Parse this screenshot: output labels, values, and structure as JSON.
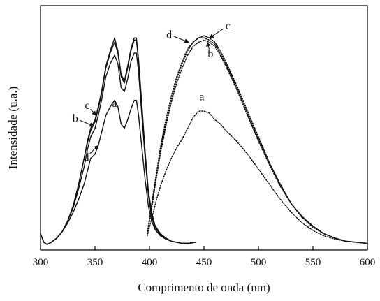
{
  "chart_data": {
    "type": "line",
    "xlabel": "Comprimento de onda (nm)",
    "ylabel": "Intensidade (u.a.)",
    "xlim": [
      300,
      600
    ],
    "ylim": [
      0,
      1.0
    ],
    "xticks": [
      300,
      350,
      400,
      450,
      500,
      550,
      600
    ],
    "yticks_shown": false,
    "grid": false,
    "legend": "none",
    "curve_labels": [
      "a",
      "b",
      "c",
      "d"
    ],
    "series": [
      {
        "style": "solid",
        "x": [
          300,
          303,
          306,
          310,
          315,
          320,
          325,
          330,
          335,
          340,
          343,
          346,
          350,
          353,
          356,
          360,
          364,
          368,
          371,
          374,
          377,
          380,
          383,
          386,
          388,
          390,
          393,
          396,
          399,
          402,
          405,
          410,
          415,
          420,
          425,
          430,
          436,
          442
        ],
        "y": [
          0.05,
          0.01,
          0.0,
          0.01,
          0.03,
          0.06,
          0.1,
          0.15,
          0.21,
          0.28,
          0.34,
          0.4,
          0.42,
          0.46,
          0.52,
          0.6,
          0.64,
          0.67,
          0.64,
          0.56,
          0.54,
          0.58,
          0.63,
          0.67,
          0.67,
          0.6,
          0.45,
          0.3,
          0.18,
          0.11,
          0.07,
          0.04,
          0.025,
          0.015,
          0.01,
          0.005,
          0.005,
          0.01
        ]
      },
      {
        "style": "solid",
        "x": [
          300,
          303,
          306,
          310,
          315,
          320,
          325,
          330,
          335,
          340,
          343,
          346,
          350,
          353,
          356,
          360,
          364,
          368,
          371,
          374,
          377,
          380,
          383,
          386,
          388,
          390,
          393,
          396,
          399,
          402,
          405,
          410,
          415,
          420,
          425,
          430,
          436,
          442
        ],
        "y": [
          0.05,
          0.01,
          0.0,
          0.01,
          0.03,
          0.06,
          0.11,
          0.17,
          0.26,
          0.36,
          0.44,
          0.5,
          0.54,
          0.6,
          0.67,
          0.78,
          0.84,
          0.88,
          0.84,
          0.73,
          0.71,
          0.77,
          0.85,
          0.89,
          0.89,
          0.8,
          0.6,
          0.4,
          0.23,
          0.13,
          0.08,
          0.045,
          0.025,
          0.015,
          0.01,
          0.005,
          0.005,
          0.01
        ]
      },
      {
        "style": "solid",
        "x": [
          300,
          303,
          306,
          310,
          315,
          320,
          325,
          330,
          335,
          340,
          343,
          346,
          350,
          353,
          356,
          360,
          364,
          368,
          371,
          374,
          377,
          380,
          383,
          386,
          388,
          390,
          393,
          396,
          399,
          402,
          405,
          410,
          415,
          420,
          425,
          430,
          436,
          442
        ],
        "y": [
          0.05,
          0.01,
          0.0,
          0.01,
          0.03,
          0.06,
          0.11,
          0.18,
          0.28,
          0.4,
          0.47,
          0.53,
          0.57,
          0.63,
          0.7,
          0.82,
          0.89,
          0.94,
          0.89,
          0.78,
          0.75,
          0.82,
          0.9,
          0.95,
          0.95,
          0.85,
          0.64,
          0.42,
          0.24,
          0.14,
          0.085,
          0.05,
          0.03,
          0.015,
          0.01,
          0.005,
          0.005,
          0.01
        ]
      },
      {
        "style": "solid",
        "x": [
          300,
          303,
          306,
          310,
          315,
          320,
          325,
          330,
          335,
          340,
          343,
          346,
          350,
          353,
          356,
          360,
          364,
          368,
          371,
          374,
          377,
          380,
          383,
          386,
          388,
          390,
          393,
          396,
          399,
          402,
          405,
          410,
          415,
          420,
          425,
          430,
          436,
          442
        ],
        "y": [
          0.05,
          0.01,
          0.0,
          0.01,
          0.03,
          0.06,
          0.11,
          0.18,
          0.28,
          0.4,
          0.48,
          0.54,
          0.58,
          0.64,
          0.71,
          0.83,
          0.9,
          0.96,
          0.9,
          0.79,
          0.76,
          0.83,
          0.91,
          0.96,
          0.96,
          0.86,
          0.65,
          0.43,
          0.25,
          0.15,
          0.09,
          0.05,
          0.03,
          0.015,
          0.01,
          0.005,
          0.005,
          0.01
        ]
      },
      {
        "style": "dotted",
        "x": [
          398,
          400,
          403,
          406,
          410,
          415,
          420,
          425,
          430,
          435,
          440,
          445,
          450,
          455,
          460,
          465,
          470,
          480,
          490,
          500,
          510,
          520,
          530,
          540,
          550,
          560,
          570,
          580,
          590,
          600
        ],
        "y": [
          0.04,
          0.08,
          0.14,
          0.2,
          0.27,
          0.34,
          0.4,
          0.45,
          0.49,
          0.54,
          0.59,
          0.62,
          0.62,
          0.61,
          0.58,
          0.56,
          0.53,
          0.48,
          0.42,
          0.35,
          0.28,
          0.21,
          0.15,
          0.1,
          0.065,
          0.04,
          0.025,
          0.015,
          0.01,
          0.005
        ]
      },
      {
        "style": "dotted",
        "x": [
          398,
          400,
          403,
          406,
          410,
          415,
          420,
          425,
          430,
          435,
          440,
          445,
          450,
          455,
          460,
          465,
          470,
          480,
          490,
          500,
          510,
          520,
          530,
          540,
          550,
          560,
          570,
          580,
          590,
          600
        ],
        "y": [
          0.05,
          0.11,
          0.2,
          0.3,
          0.42,
          0.55,
          0.66,
          0.75,
          0.82,
          0.88,
          0.92,
          0.94,
          0.95,
          0.94,
          0.92,
          0.88,
          0.83,
          0.72,
          0.6,
          0.48,
          0.37,
          0.27,
          0.19,
          0.125,
          0.08,
          0.05,
          0.03,
          0.015,
          0.01,
          0.005
        ]
      },
      {
        "style": "dotted",
        "x": [
          398,
          400,
          403,
          406,
          410,
          415,
          420,
          425,
          430,
          435,
          440,
          445,
          450,
          455,
          460,
          465,
          470,
          480,
          490,
          500,
          510,
          520,
          530,
          540,
          550,
          560,
          570,
          580,
          590,
          600
        ],
        "y": [
          0.05,
          0.11,
          0.21,
          0.31,
          0.43,
          0.56,
          0.67,
          0.77,
          0.84,
          0.9,
          0.94,
          0.96,
          0.97,
          0.96,
          0.94,
          0.9,
          0.85,
          0.74,
          0.62,
          0.5,
          0.38,
          0.28,
          0.19,
          0.13,
          0.085,
          0.05,
          0.03,
          0.015,
          0.01,
          0.005
        ]
      },
      {
        "style": "dotted",
        "x": [
          398,
          400,
          403,
          406,
          410,
          415,
          420,
          425,
          430,
          435,
          440,
          445,
          450,
          455,
          460,
          465,
          470,
          480,
          490,
          500,
          510,
          520,
          530,
          540,
          550,
          560,
          570,
          580,
          590,
          600
        ],
        "y": [
          0.05,
          0.12,
          0.22,
          0.32,
          0.45,
          0.58,
          0.69,
          0.78,
          0.85,
          0.91,
          0.94,
          0.96,
          0.96,
          0.95,
          0.93,
          0.89,
          0.84,
          0.73,
          0.61,
          0.49,
          0.38,
          0.28,
          0.19,
          0.13,
          0.085,
          0.05,
          0.03,
          0.015,
          0.01,
          0.005
        ]
      }
    ],
    "annotations": [
      {
        "text": "c",
        "x": 343,
        "y": 0.63,
        "arrow_to": [
          351,
          0.6
        ]
      },
      {
        "text": "b",
        "x": 332,
        "y": 0.57,
        "arrow_to": [
          349,
          0.55
        ]
      },
      {
        "text": "a",
        "x": 368,
        "y": 0.64
      },
      {
        "text": "d",
        "x": 342,
        "y": 0.39,
        "arrow_to": [
          353,
          0.46
        ]
      },
      {
        "text": "c",
        "x": 472,
        "y": 1.0,
        "arrow_to": [
          455,
          0.96
        ]
      },
      {
        "text": "d",
        "x": 418,
        "y": 0.96,
        "arrow_to": [
          436,
          0.94
        ]
      },
      {
        "text": "b",
        "x": 456,
        "y": 0.87,
        "arrow_to": [
          453,
          0.94
        ]
      },
      {
        "text": "a",
        "x": 448,
        "y": 0.67
      }
    ]
  }
}
